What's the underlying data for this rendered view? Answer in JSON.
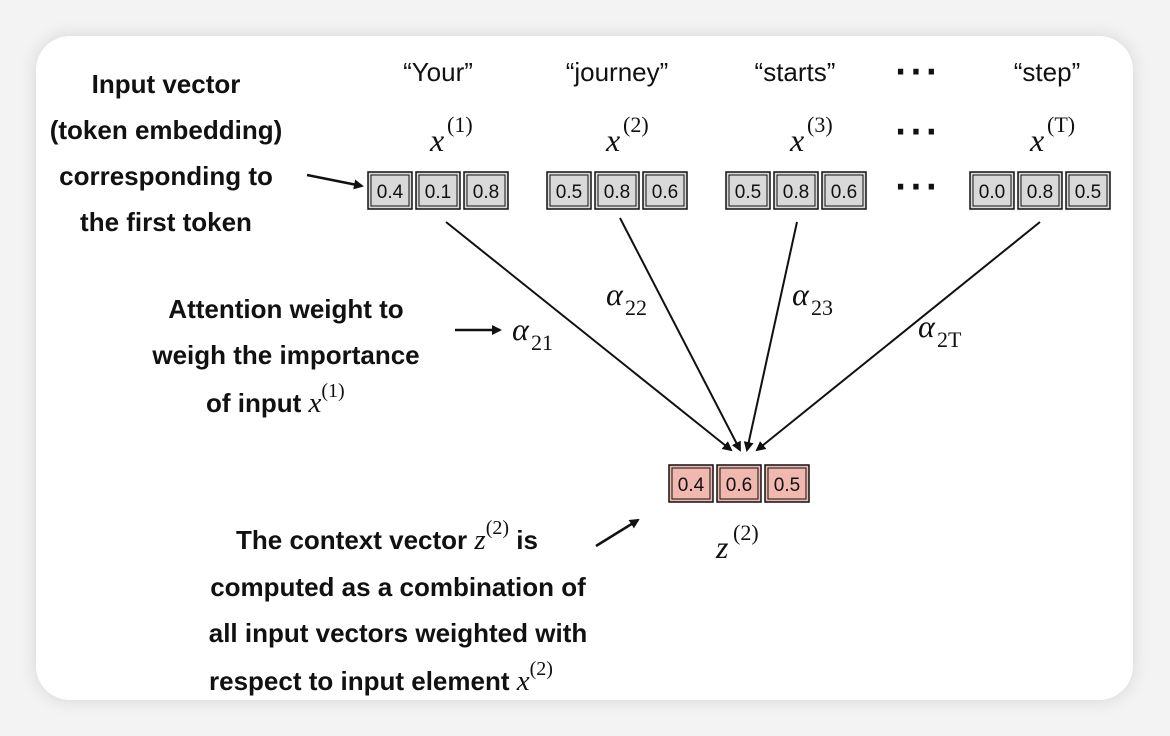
{
  "tokens": [
    {
      "word": "“Your”",
      "var": "x",
      "sup": "(1)",
      "values": [
        "0.4",
        "0.1",
        "0.8"
      ]
    },
    {
      "word": "“journey”",
      "var": "x",
      "sup": "(2)",
      "values": [
        "0.5",
        "0.8",
        "0.6"
      ]
    },
    {
      "word": "“starts”",
      "var": "x",
      "sup": "(3)",
      "values": [
        "0.5",
        "0.8",
        "0.6"
      ]
    },
    {
      "word": "“step”",
      "var": "x",
      "sup": "(T)",
      "values": [
        "0.0",
        "0.8",
        "0.5"
      ]
    }
  ],
  "ellipsis": "···",
  "weights": [
    {
      "sym": "α",
      "sub": "21"
    },
    {
      "sym": "α",
      "sub": "22"
    },
    {
      "sym": "α",
      "sub": "23"
    },
    {
      "sym": "α",
      "sub": "2T"
    }
  ],
  "context": {
    "var": "z",
    "sup": "(2)",
    "values": [
      "0.4",
      "0.6",
      "0.5"
    ]
  },
  "annotations": {
    "input": [
      "Input vector",
      "(token embedding)",
      "corresponding to",
      "the first token"
    ],
    "attention": {
      "line1": "Attention weight to",
      "line2": "weigh the importance",
      "line3_text": "of input ",
      "line3_var": "x",
      "line3_sup": "(1)"
    },
    "context": {
      "line1_text": "The context vector ",
      "line1_var": "z",
      "line1_sup": "(2)",
      "line1_tail": " is",
      "line2": "computed as a combination of",
      "line3": "all input vectors weighted with",
      "line4_text": "respect to input element ",
      "line4_var": "x",
      "line4_sup": "(2)"
    }
  },
  "colors": {
    "input_cell": "#d9d9d9",
    "context_cell": "#f0b8ae",
    "stroke": "#111111"
  }
}
